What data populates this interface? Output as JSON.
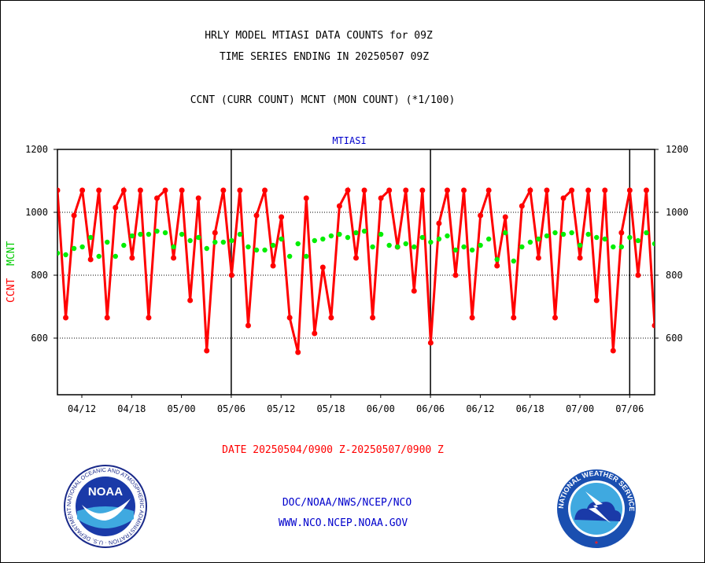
{
  "titles": {
    "line1": "HRLY MODEL MTIASI DATA COUNTS for 09Z",
    "line2": "TIME SERIES ENDING IN 20250507 09Z",
    "line3": "CCNT (CURR COUNT) MCNT (MON COUNT) (*1/100)"
  },
  "footer": {
    "date_range": "DATE 20250504/0900 Z-20250507/0900 Z",
    "org_line": "DOC/NOAA/NWS/NCEP/NCO",
    "url_line": "WWW.NCO.NCEP.NOAA.GOV"
  },
  "logos": {
    "left": {
      "name": "noaa-logo",
      "text": "NOAA",
      "ring_text": "NATIONAL OCEANIC AND ATMOSPHERIC ADMINISTRATION · U.S. DEPARTMENT OF COMMERCE"
    },
    "right": {
      "name": "nws-logo",
      "ring_text": "NATIONAL WEATHER SERVICE"
    }
  },
  "colors": {
    "ccnt": "#ff0000",
    "mcnt": "#00ee00",
    "axis": "#000000",
    "link": "#0000cc"
  },
  "chart_data": {
    "type": "line",
    "title": "MTIASI",
    "ylabel_ccnt": "CCNT",
    "ylabel_mcnt": "MCNT",
    "ylim": [
      420,
      1200
    ],
    "yticks": [
      600,
      800,
      1000,
      1200
    ],
    "grid": "horizontal dotted at 600, 800, 1000",
    "xtick_labels": [
      "04/12",
      "04/18",
      "05/00",
      "05/06",
      "05/12",
      "05/18",
      "06/00",
      "06/06",
      "06/12",
      "06/18",
      "07/00",
      "07/06"
    ],
    "day_boundaries": [
      "05/06",
      "06/06",
      "07/06"
    ],
    "x_points": 73,
    "series": [
      {
        "name": "CCNT",
        "color": "#ff0000",
        "values": [
          1070,
          665,
          990,
          1070,
          850,
          1070,
          665,
          1015,
          1070,
          855,
          1070,
          665,
          1045,
          1070,
          855,
          1070,
          720,
          1045,
          560,
          935,
          1070,
          800,
          1070,
          640,
          990,
          1070,
          830,
          985,
          665,
          555,
          1045,
          615,
          825,
          665,
          1020,
          1070,
          855,
          1070,
          665,
          1045,
          1070,
          890,
          1070,
          750,
          1070,
          585,
          965,
          1070,
          800,
          1070,
          665,
          990,
          1070,
          830,
          985,
          665,
          1020,
          1070,
          855,
          1070,
          665,
          1045,
          1070,
          855,
          1070,
          720,
          1070,
          560,
          935,
          1070,
          800,
          1070,
          640
        ]
      },
      {
        "name": "MCNT",
        "color": "#00ee00",
        "values": [
          870,
          865,
          885,
          890,
          920,
          860,
          905,
          860,
          895,
          925,
          930,
          930,
          940,
          935,
          890,
          930,
          910,
          920,
          885,
          905,
          905,
          910,
          930,
          890,
          880,
          880,
          895,
          915,
          860,
          900,
          860,
          910,
          915,
          925,
          930,
          920,
          935,
          940,
          890,
          930,
          895,
          890,
          900,
          890,
          920,
          905,
          915,
          925,
          880,
          890,
          880,
          895,
          915,
          850,
          935,
          845,
          890,
          905,
          915,
          925,
          935,
          930,
          935,
          895,
          930,
          920,
          915,
          890,
          890,
          920,
          910,
          935,
          900
        ]
      }
    ]
  }
}
